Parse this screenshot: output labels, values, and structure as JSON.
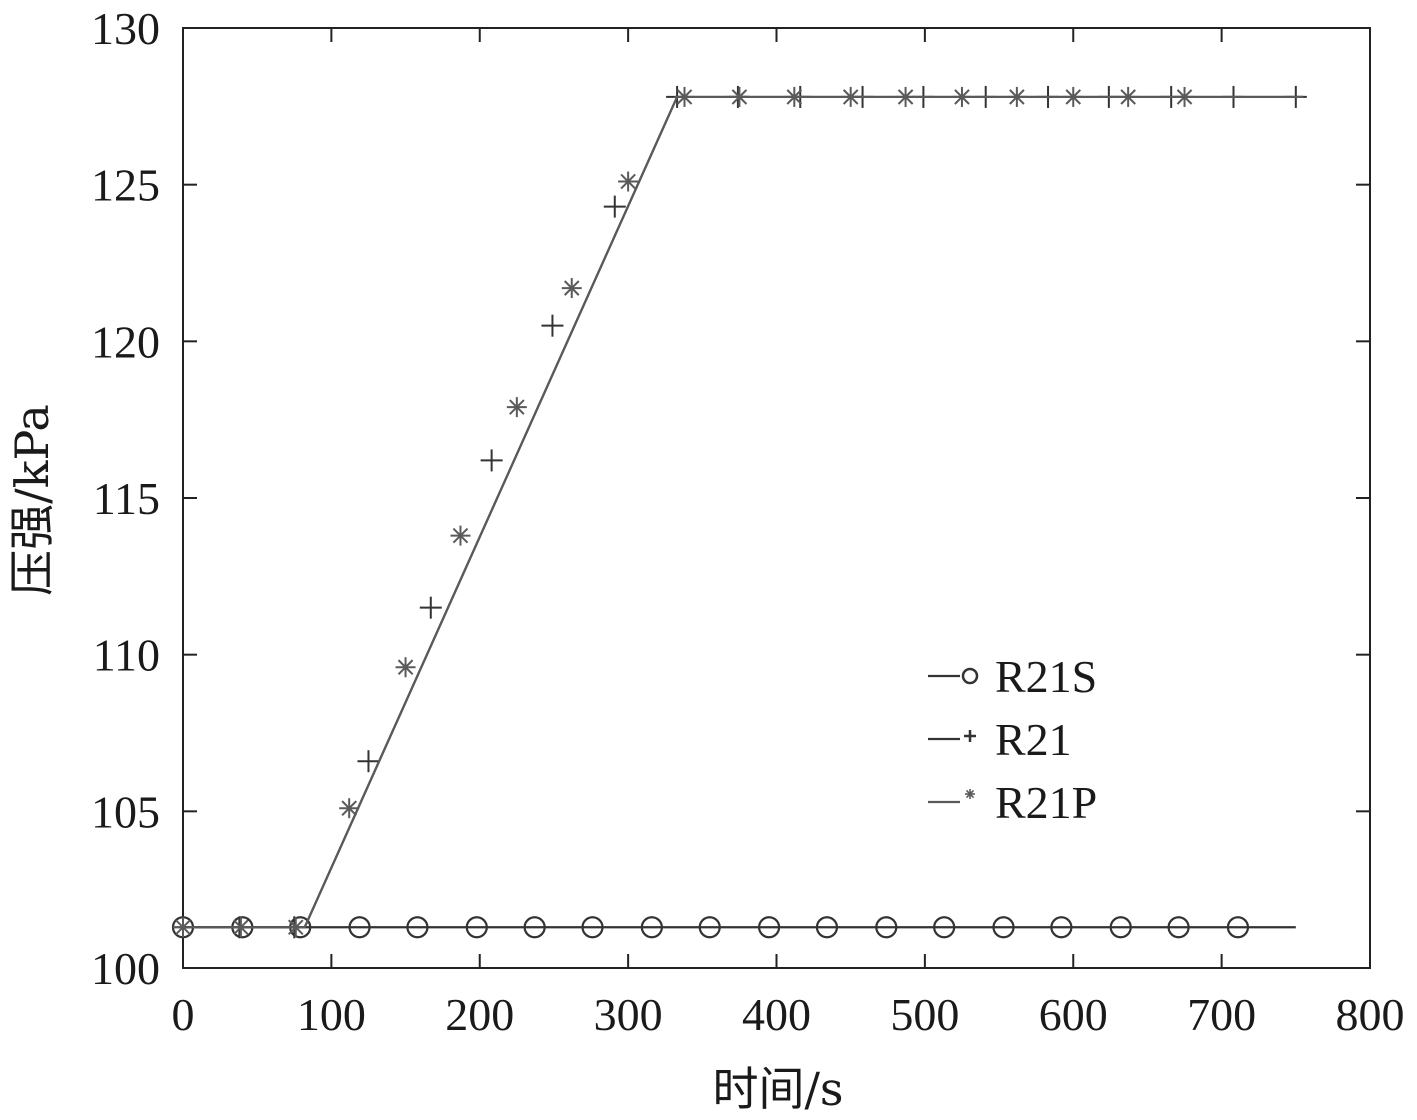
{
  "chart_data": {
    "type": "line",
    "xlabel": "时间/s",
    "ylabel": "压强/kPa",
    "xlim": [
      0,
      800
    ],
    "ylim": [
      100,
      130
    ],
    "xticks": [
      0,
      100,
      200,
      300,
      400,
      500,
      600,
      700,
      800
    ],
    "yticks": [
      100,
      105,
      110,
      115,
      120,
      125,
      130
    ],
    "grid": false,
    "legend_position": "center-right",
    "series": [
      {
        "name": "R21S",
        "marker": "circle",
        "color": "#333333",
        "line": [
          [
            0,
            101.3
          ],
          [
            750,
            101.3
          ]
        ],
        "markers": [
          [
            0,
            101.3
          ],
          [
            40,
            101.3
          ],
          [
            79,
            101.3
          ],
          [
            119,
            101.3
          ],
          [
            158,
            101.3
          ],
          [
            198,
            101.3
          ],
          [
            237,
            101.3
          ],
          [
            276,
            101.3
          ],
          [
            316,
            101.3
          ],
          [
            355,
            101.3
          ],
          [
            395,
            101.3
          ],
          [
            434,
            101.3
          ],
          [
            474,
            101.3
          ],
          [
            513,
            101.3
          ],
          [
            553,
            101.3
          ],
          [
            592,
            101.3
          ],
          [
            632,
            101.3
          ],
          [
            671,
            101.3
          ],
          [
            711,
            101.3
          ]
        ]
      },
      {
        "name": "R21",
        "marker": "plus",
        "color": "#333333",
        "line": [
          [
            0,
            101.3
          ],
          [
            82,
            101.3
          ],
          [
            333,
            127.8
          ],
          [
            755,
            127.8
          ]
        ],
        "markers": [
          [
            0,
            101.3
          ],
          [
            38,
            101.3
          ],
          [
            75,
            101.3
          ],
          [
            125,
            106.6
          ],
          [
            167,
            111.5
          ],
          [
            208,
            116.2
          ],
          [
            249,
            120.5
          ],
          [
            291,
            124.3
          ],
          [
            333,
            127.8
          ],
          [
            374,
            127.8
          ],
          [
            416,
            127.8
          ],
          [
            458,
            127.8
          ],
          [
            499,
            127.8
          ],
          [
            541,
            127.8
          ],
          [
            583,
            127.8
          ],
          [
            624,
            127.8
          ],
          [
            666,
            127.8
          ],
          [
            708,
            127.8
          ],
          [
            750,
            127.8
          ]
        ]
      },
      {
        "name": "R21P",
        "marker": "asterisk",
        "color": "#5a5a5a",
        "line": [
          [
            0,
            101.3
          ],
          [
            82,
            101.3
          ],
          [
            333,
            127.8
          ],
          [
            755,
            127.8
          ]
        ],
        "markers": [
          [
            0,
            101.3
          ],
          [
            39,
            101.3
          ],
          [
            76,
            101.3
          ],
          [
            112,
            105.1
          ],
          [
            150,
            109.6
          ],
          [
            187,
            113.8
          ],
          [
            225,
            117.9
          ],
          [
            262,
            121.7
          ],
          [
            300,
            125.1
          ],
          [
            338,
            127.8
          ],
          [
            375,
            127.8
          ],
          [
            412,
            127.8
          ],
          [
            450,
            127.8
          ],
          [
            487,
            127.8
          ],
          [
            525,
            127.8
          ],
          [
            562,
            127.8
          ],
          [
            600,
            127.8
          ],
          [
            637,
            127.8
          ],
          [
            675,
            127.8
          ]
        ]
      }
    ]
  }
}
